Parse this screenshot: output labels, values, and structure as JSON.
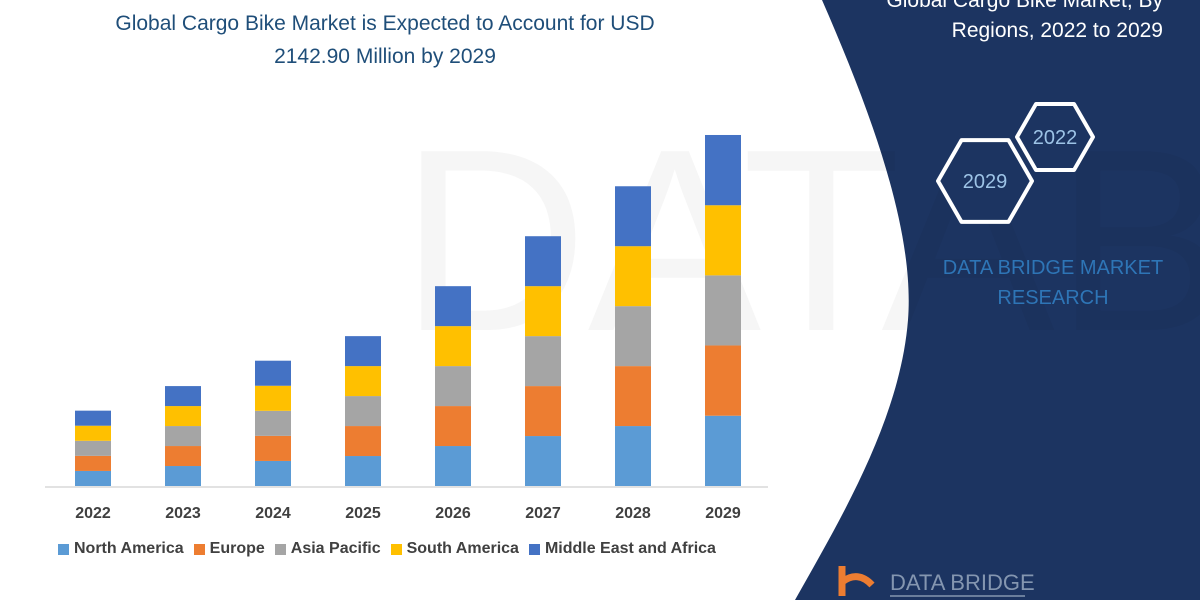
{
  "title": "Global Cargo Bike Market is Expected to Account for USD 2142.90 Million by 2029",
  "title_lines": [
    "Global Cargo Bike Market is Expected to Account for USD",
    "2142.90 Million by 2029"
  ],
  "side_title_lines": [
    "Global Cargo Bike Market, By",
    "Regions, 2022 to 2029"
  ],
  "hexagons": [
    "2022",
    "2029"
  ],
  "brand_lines": [
    "DATA BRIDGE MARKET",
    "RESEARCH"
  ],
  "logo_text": "DATA BRIDGE",
  "colors": {
    "panel": "#1c3461",
    "north_america": "#5b9bd5",
    "europe": "#ed7d31",
    "asia_pacific": "#a5a5a5",
    "south_america": "#ffc000",
    "mea": "#4472c4"
  },
  "chart_data": {
    "type": "bar",
    "stacked": true,
    "title": "Global Cargo Bike Market is Expected to Account for USD 2142.90 Million by 2029",
    "categories": [
      "2022",
      "2023",
      "2024",
      "2025",
      "2026",
      "2027",
      "2028",
      "2029"
    ],
    "series": [
      {
        "name": "North America",
        "color": "#5b9bd5",
        "values": [
          92,
          122,
          153,
          183,
          244,
          305,
          366,
          429
        ]
      },
      {
        "name": "Europe",
        "color": "#ed7d31",
        "values": [
          92,
          122,
          153,
          183,
          244,
          305,
          366,
          429
        ]
      },
      {
        "name": "Asia Pacific",
        "color": "#a5a5a5",
        "values": [
          92,
          122,
          153,
          183,
          244,
          305,
          366,
          428
        ]
      },
      {
        "name": "South America",
        "color": "#ffc000",
        "values": [
          92,
          122,
          153,
          183,
          244,
          305,
          366,
          428
        ]
      },
      {
        "name": "Middle East and Africa",
        "color": "#4472c4",
        "values": [
          92,
          122,
          153,
          183,
          244,
          305,
          366,
          429
        ]
      }
    ],
    "xlabel": "",
    "ylabel": "",
    "y_axis_shown": false,
    "grid": false,
    "legend_position": "bottom"
  }
}
